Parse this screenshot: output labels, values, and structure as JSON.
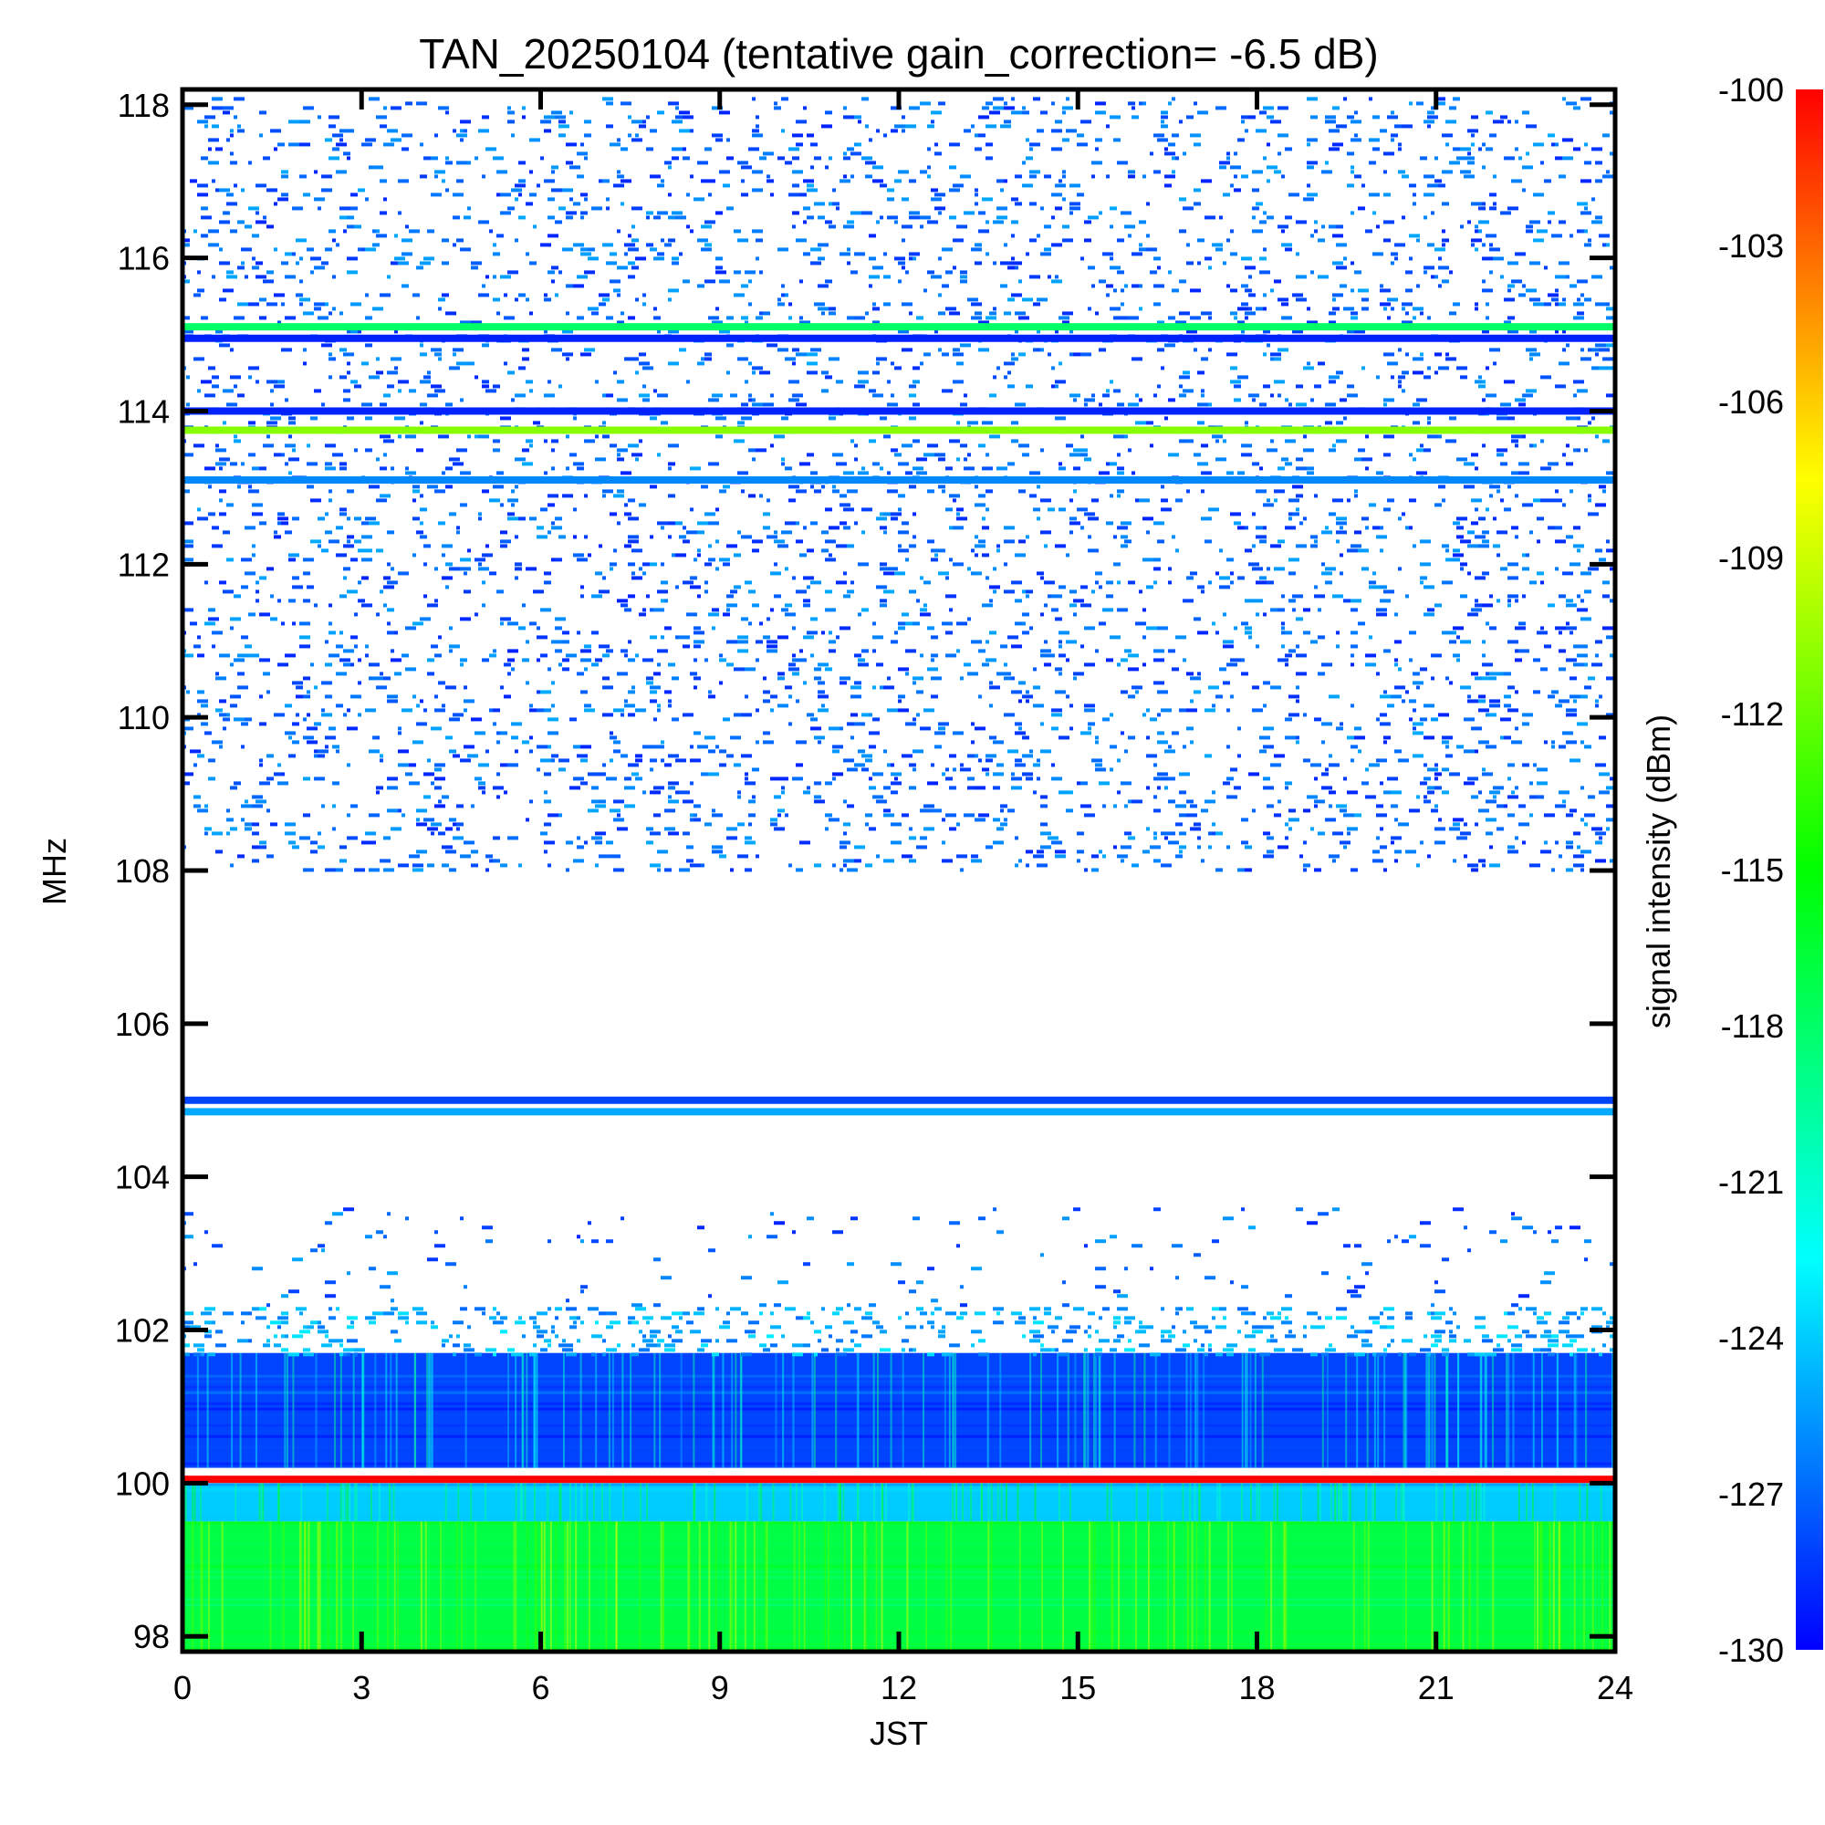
{
  "chart_data": {
    "type": "heatmap",
    "title": "TAN_20250104 (tentative gain_correction= -6.5 dB)",
    "xlabel": "JST",
    "ylabel": "MHz",
    "colorbar_label": "signal intensity (dBm)",
    "xlim": [
      0,
      24
    ],
    "ylim": [
      97.8,
      118.2
    ],
    "x_ticks": [
      0,
      3,
      6,
      9,
      12,
      15,
      18,
      21,
      24
    ],
    "x_tick_labels": [
      "0",
      "3",
      "6",
      "9",
      "12",
      "15",
      "18",
      "21",
      "24"
    ],
    "y_ticks": [
      98,
      100,
      102,
      104,
      106,
      108,
      110,
      112,
      114,
      116,
      118
    ],
    "y_tick_labels": [
      "98",
      "100",
      "102",
      "104",
      "106",
      "108",
      "110",
      "112",
      "114",
      "116",
      "118"
    ],
    "colorbar_range": [
      -130,
      -100
    ],
    "colorbar_ticks": [
      -100,
      -103,
      -106,
      -109,
      -112,
      -115,
      -118,
      -121,
      -124,
      -127,
      -130
    ],
    "colorbar_tick_labels": [
      "-100",
      "-103",
      "-106",
      "-109",
      "-112",
      "-115",
      "-118",
      "-121",
      "-124",
      "-127",
      "-130"
    ],
    "colormap": [
      "#0000ff",
      "#0080ff",
      "#00ffff",
      "#00ff80",
      "#00ff00",
      "#80ff00",
      "#ffff00",
      "#ff8000",
      "#ff0000"
    ],
    "regions": [
      {
        "y0": 97.8,
        "y1": 99.5,
        "level_dbm": -117,
        "texture": "dense"
      },
      {
        "y0": 99.5,
        "y1": 100.0,
        "level_dbm": -124,
        "texture": "dense"
      },
      {
        "y0": 100.2,
        "y1": 101.7,
        "level_dbm": -128,
        "texture": "dense"
      },
      {
        "y0": 101.7,
        "y1": 102.3,
        "level_dbm": -127,
        "texture": "sparse-dense"
      },
      {
        "y0": 102.3,
        "y1": 103.6,
        "level_dbm": -129,
        "texture": "very-sparse"
      },
      {
        "y0": 108.0,
        "y1": 118.1,
        "level_dbm": -129,
        "texture": "sparse"
      }
    ],
    "lines": [
      {
        "y": 100.05,
        "level_dbm": -100
      },
      {
        "y": 104.85,
        "level_dbm": -125
      },
      {
        "y": 105.0,
        "level_dbm": -128
      },
      {
        "y": 113.1,
        "level_dbm": -126
      },
      {
        "y": 113.75,
        "level_dbm": -111
      },
      {
        "y": 114.0,
        "level_dbm": -129
      },
      {
        "y": 114.95,
        "level_dbm": -129
      },
      {
        "y": 115.1,
        "level_dbm": -118
      }
    ]
  }
}
